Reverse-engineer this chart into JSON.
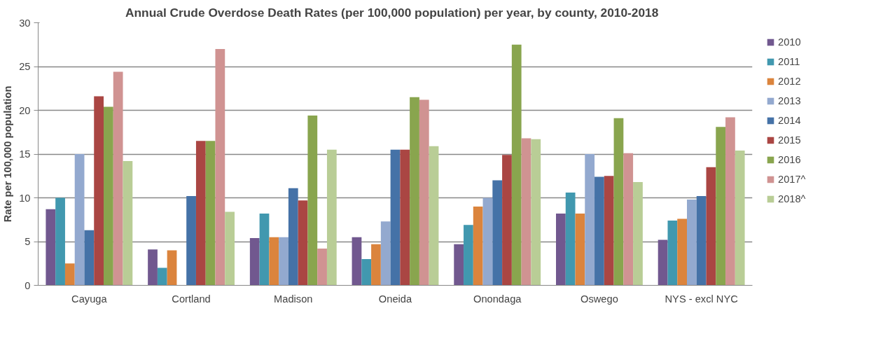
{
  "chart_data": {
    "type": "bar",
    "title": "Annual  Crude Overdose Death Rates (per 100,000 population)  per year, by county, 2010-2018",
    "ylabel": "Rate per 100,000 population",
    "categories": [
      "Cayuga",
      "Cortland",
      "Madison",
      "Oneida",
      "Onondaga",
      "Oswego",
      "NYS - excl NYC"
    ],
    "series": [
      {
        "name": "2010",
        "color": "#71588f",
        "values": [
          8.7,
          4.1,
          5.4,
          5.5,
          4.7,
          8.2,
          5.2
        ]
      },
      {
        "name": "2011",
        "color": "#4198af",
        "values": [
          10.0,
          2.0,
          8.2,
          3.0,
          6.9,
          10.6,
          7.4
        ]
      },
      {
        "name": "2012",
        "color": "#db843d",
        "values": [
          2.5,
          4.0,
          5.5,
          4.7,
          9.0,
          8.2,
          7.6
        ]
      },
      {
        "name": "2013",
        "color": "#93a9cf",
        "values": [
          15.0,
          null,
          5.5,
          7.3,
          10.0,
          15.0,
          9.8
        ]
      },
      {
        "name": "2014",
        "color": "#4572a7",
        "values": [
          6.3,
          10.2,
          11.1,
          15.5,
          12.0,
          12.4,
          10.2
        ]
      },
      {
        "name": "2015",
        "color": "#aa4643",
        "values": [
          21.6,
          16.5,
          9.7,
          15.5,
          14.9,
          12.5,
          13.5
        ]
      },
      {
        "name": "2016",
        "color": "#89a54e",
        "values": [
          20.4,
          16.5,
          19.4,
          21.5,
          27.5,
          19.1,
          18.1
        ]
      },
      {
        "name": "2017^",
        "color": "#d09392",
        "values": [
          24.4,
          27.0,
          4.2,
          21.2,
          16.8,
          15.1,
          19.2
        ]
      },
      {
        "name": "2018^",
        "color": "#b9cd96",
        "values": [
          14.2,
          8.4,
          15.5,
          15.9,
          16.7,
          11.8,
          15.4
        ]
      }
    ],
    "ylim": [
      0,
      30
    ],
    "yticks": [
      0,
      5,
      10,
      15,
      20,
      25,
      30
    ],
    "grid": "y",
    "legend": "right"
  }
}
